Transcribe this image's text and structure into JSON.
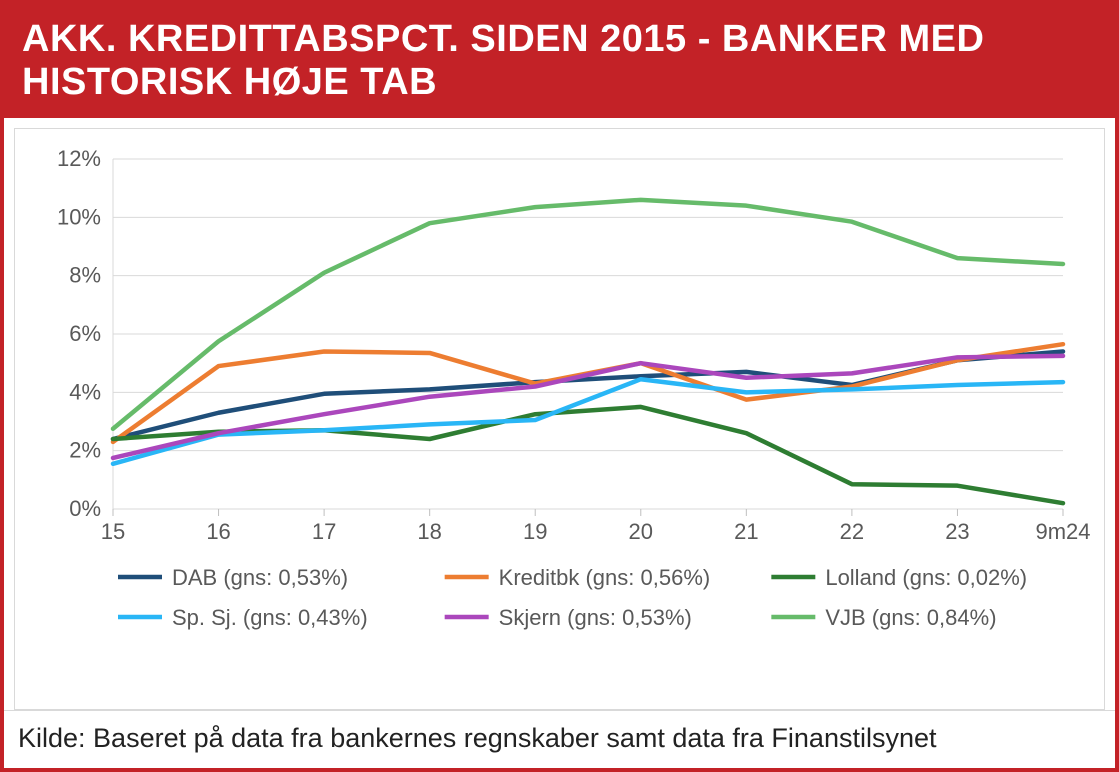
{
  "title": "AKK. KREDITTABSPCT. SIDEN 2015 - BANKER MED HISTORISK HØJE TAB",
  "source": "Kilde: Baseret på data fra bankernes regnskaber samt data fra Finanstilsynet",
  "chart": {
    "type": "line",
    "background_color": "#ffffff",
    "border_color": "#d9d9d9",
    "grid_color": "#d9d9d9",
    "axis_color": "#bfbfbf",
    "tick_font_color": "#595959",
    "tick_fontsize": 22,
    "legend_fontsize": 22,
    "title_fontsize": 38,
    "line_width": 4.5,
    "x_labels": [
      "15",
      "16",
      "17",
      "18",
      "19",
      "20",
      "21",
      "22",
      "23",
      "9m24"
    ],
    "ylim": [
      0,
      12
    ],
    "ytick_step": 2,
    "y_format": "percent_int",
    "series": [
      {
        "key": "dab",
        "label": "DAB (gns: 0,53%)",
        "color": "#1f4e79",
        "values": [
          2.4,
          3.3,
          3.95,
          4.1,
          4.35,
          4.55,
          4.7,
          4.25,
          5.1,
          5.4
        ]
      },
      {
        "key": "kreditbk",
        "label": "Kreditbk (gns: 0,56%)",
        "color": "#ed7d31",
        "values": [
          2.3,
          4.9,
          5.4,
          5.35,
          4.3,
          5.0,
          3.75,
          4.2,
          5.1,
          5.65
        ]
      },
      {
        "key": "lolland",
        "label": "Lolland (gns: 0,02%)",
        "color": "#2e7d32",
        "values": [
          2.4,
          2.65,
          2.7,
          2.4,
          3.25,
          3.5,
          2.6,
          0.85,
          0.8,
          0.2
        ]
      },
      {
        "key": "spsj",
        "label": "Sp. Sj. (gns: 0,43%)",
        "color": "#29b6f6",
        "values": [
          1.55,
          2.55,
          2.7,
          2.9,
          3.05,
          4.45,
          4.0,
          4.1,
          4.25,
          4.35
        ]
      },
      {
        "key": "skjern",
        "label": "Skjern (gns: 0,53%)",
        "color": "#ab47bc",
        "values": [
          1.75,
          2.6,
          3.25,
          3.85,
          4.2,
          5.0,
          4.5,
          4.65,
          5.2,
          5.25
        ]
      },
      {
        "key": "vjb",
        "label": "VJB (gns: 0,84%)",
        "color": "#66bb6a",
        "values": [
          2.75,
          5.75,
          8.1,
          9.8,
          10.35,
          10.6,
          10.4,
          9.85,
          8.6,
          8.4
        ]
      }
    ],
    "legend_layout": [
      [
        "dab",
        "kreditbk",
        "lolland"
      ],
      [
        "spsj",
        "skjern",
        "vjb"
      ]
    ]
  }
}
